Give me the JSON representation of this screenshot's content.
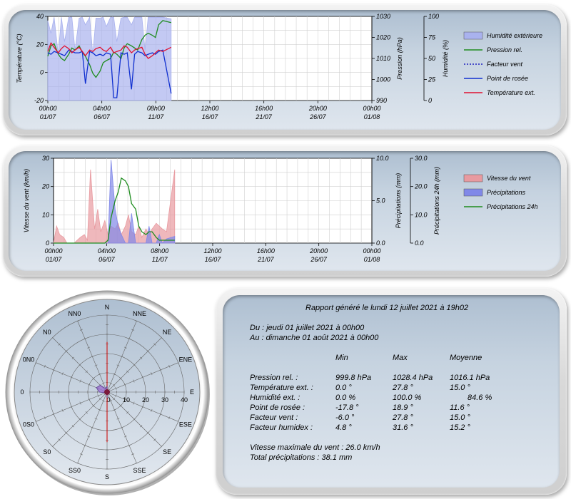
{
  "chart_data": [
    {
      "type": "line",
      "x_ticks": [
        [
          "00h00",
          "01/07"
        ],
        [
          "04h00",
          "06/07"
        ],
        [
          "08h00",
          "11/07"
        ],
        [
          "12h00",
          "16/07"
        ],
        [
          "16h00",
          "21/07"
        ],
        [
          "20h00",
          "26/07"
        ],
        [
          "00h00",
          "01/08"
        ]
      ],
      "y_left": {
        "label": "Température (°C)",
        "range": [
          -20,
          40
        ],
        "ticks": [
          "40",
          "20",
          "0",
          "-20"
        ]
      },
      "y_mid": {
        "label": "Pression (hPa)",
        "range": [
          990,
          1030
        ],
        "ticks": [
          "1030",
          "1020",
          "1010",
          "1000",
          "990"
        ]
      },
      "y_right": {
        "label": "Humidité (%)",
        "range": [
          0,
          100
        ],
        "ticks": [
          "100",
          "75",
          "50",
          "25",
          "0"
        ]
      },
      "legend": [
        {
          "name": "Humidité extérieure",
          "color": "#a9b2ee",
          "kind": "area"
        },
        {
          "name": "Pression rel.",
          "color": "#1e8c1e",
          "kind": "line"
        },
        {
          "name": "Facteur vent",
          "color": "#2020c0",
          "kind": "dotted"
        },
        {
          "name": "Point de rosée",
          "color": "#1030d0",
          "kind": "line"
        },
        {
          "name": "Température ext.",
          "color": "#e01030",
          "kind": "line"
        }
      ],
      "x_days": [
        1.0,
        1.3,
        1.6,
        2.0,
        2.3,
        2.6,
        3.0,
        3.3,
        3.6,
        4.0,
        4.3,
        4.6,
        5.0,
        5.3,
        5.6,
        6.0,
        6.3,
        6.6,
        7.0,
        7.3,
        7.6,
        8.0,
        8.3,
        8.6,
        9.0,
        9.3,
        9.6,
        10.0,
        10.3,
        10.6,
        11.0,
        11.3,
        11.6,
        12.0,
        12.8
      ],
      "series": [
        {
          "name": "Humidité extérieure",
          "axis": "right",
          "values": [
            95,
            80,
            99,
            55,
            99,
            70,
            99,
            99,
            60,
            98,
            99,
            90,
            99,
            55,
            98,
            98,
            99,
            88,
            99,
            99,
            70,
            98,
            99,
            99,
            90,
            99,
            99,
            99,
            60,
            99,
            99,
            99,
            99,
            99,
            97
          ]
        },
        {
          "name": "Pression rel.",
          "axis": "mid",
          "values": [
            1011,
            1016,
            1017,
            1012,
            1010,
            1009,
            1012,
            1015,
            1014,
            1016,
            1013,
            1011,
            1007,
            1003,
            1001,
            1004,
            1008,
            1009,
            1010,
            1013,
            1012,
            1010,
            1015,
            1017,
            1016,
            1015,
            1014,
            1019,
            1021,
            1022,
            1021,
            1020,
            1026,
            1028,
            1027
          ]
        },
        {
          "name": "Point de rosée",
          "axis": "left",
          "values": [
            14,
            13,
            15,
            14,
            13,
            12,
            16,
            15,
            14,
            14,
            15,
            -8,
            15,
            14,
            12,
            13,
            12,
            14,
            13,
            -18,
            -18,
            14,
            13,
            14,
            -12,
            13,
            15,
            14,
            12,
            13,
            14,
            13,
            15,
            16,
            -15
          ]
        },
        {
          "name": "Température ext.",
          "axis": "left",
          "values": [
            15,
            21,
            18,
            14,
            17,
            19,
            17,
            14,
            16,
            18,
            15,
            12,
            16,
            15,
            17,
            18,
            16,
            15,
            18,
            14,
            15,
            16,
            19,
            18,
            14,
            16,
            17,
            18,
            13,
            10,
            12,
            14,
            16,
            15,
            18
          ]
        }
      ]
    },
    {
      "type": "area",
      "x_ticks": [
        [
          "00h00",
          "01/07"
        ],
        [
          "04h00",
          "06/07"
        ],
        [
          "08h00",
          "11/07"
        ],
        [
          "12h00",
          "16/07"
        ],
        [
          "16h00",
          "21/07"
        ],
        [
          "20h00",
          "26/07"
        ],
        [
          "00h00",
          "01/08"
        ]
      ],
      "y_left": {
        "label": "Vitesse du vent (km/h)",
        "range": [
          0,
          30
        ],
        "ticks": [
          "30",
          "20",
          "10",
          "0"
        ]
      },
      "y_mid": {
        "label": "Précipitations (mm)",
        "range": [
          0,
          10
        ],
        "ticks": [
          "10.0",
          "5.0",
          "0.0"
        ]
      },
      "y_right": {
        "label": "Précipitations 24h (mm)",
        "range": [
          0,
          30
        ],
        "ticks": [
          "30.0",
          "20.0",
          "10.0",
          "0.0"
        ]
      },
      "legend": [
        {
          "name": "Vitesse du vent",
          "color": "#e89aa0",
          "kind": "area"
        },
        {
          "name": "Précipitations",
          "color": "#8088e8",
          "kind": "area"
        },
        {
          "name": "Précipitations 24h",
          "color": "#1e8c1e",
          "kind": "line"
        }
      ],
      "x_days": [
        1.0,
        1.3,
        1.6,
        2.0,
        2.3,
        2.6,
        3.0,
        3.3,
        3.6,
        4.0,
        4.3,
        4.6,
        5.0,
        5.3,
        5.6,
        6.0,
        6.3,
        6.6,
        7.0,
        7.3,
        7.6,
        8.0,
        8.3,
        8.6,
        9.0,
        9.3,
        9.6,
        10.0,
        10.3,
        10.6,
        11.0,
        11.3,
        11.6,
        12.0,
        12.8
      ],
      "series": [
        {
          "name": "Vitesse du vent",
          "axis": "left",
          "values": [
            0,
            6,
            3,
            2,
            0,
            0,
            0,
            1,
            2,
            3,
            1,
            26,
            5,
            12,
            4,
            8,
            3,
            6,
            5,
            7,
            3,
            6,
            10,
            4,
            3,
            6,
            2,
            5,
            3,
            5,
            7,
            6,
            5,
            4,
            26
          ]
        },
        {
          "name": "Précipitations",
          "axis": "mid",
          "values": [
            0,
            0,
            0,
            0,
            0,
            0,
            0,
            0,
            0,
            0,
            0,
            0,
            0,
            0,
            0,
            0,
            0,
            9.8,
            4.0,
            2.0,
            1.0,
            0,
            0,
            3.5,
            0,
            0,
            0,
            0,
            2.0,
            0,
            0,
            1.0,
            0,
            0.5,
            0.8
          ]
        },
        {
          "name": "Précipitations 24h",
          "axis": "right",
          "values": [
            0,
            0,
            0,
            0,
            0,
            0,
            0,
            0,
            0,
            0,
            0,
            0,
            0,
            0,
            0,
            0,
            1,
            9,
            15,
            18,
            23,
            22,
            20,
            14,
            12,
            6,
            4,
            3,
            4,
            4,
            2,
            1,
            1,
            1,
            1
          ]
        }
      ]
    },
    {
      "type": "polar",
      "directions": [
        "N",
        "NNE",
        "NE",
        "ENE",
        "E",
        "ESE",
        "SE",
        "SSE",
        "S",
        "SS0",
        "S0",
        "0S0",
        "0",
        "0N0",
        "N0",
        "NN0"
      ],
      "rings": [
        "0",
        "10",
        "20",
        "30",
        "40"
      ],
      "max": 40,
      "values": [
        3,
        0,
        0,
        0,
        0,
        0,
        0,
        0,
        3,
        0,
        0,
        1,
        4,
        6,
        5,
        2
      ],
      "fill": "#9a6fd0"
    }
  ],
  "report": {
    "title": "Rapport généré le lundi 12 juillet 2021 à 19h02",
    "from": "Du : jeudi 01 juillet 2021 à 00h00",
    "to": "Au : dimanche 01 août 2021 à 00h00",
    "headers": [
      "Min",
      "Max",
      "Moyenne"
    ],
    "rows": [
      {
        "label": "Pression rel. :",
        "min": "999.8 hPa",
        "max": "1028.4 hPa",
        "avg": "1016.1 hPa"
      },
      {
        "label": "Température ext. :",
        "min": "0.0 °",
        "max": "27.8 °",
        "avg": "15.0 °"
      },
      {
        "label": "Humidité ext. :",
        "min": "0.0 %",
        "max": "100.0 %",
        "avg": "84.6 %"
      },
      {
        "label": "Point de rosée :",
        "min": "-17.8 °",
        "max": "18.9 °",
        "avg": "11.6 °"
      },
      {
        "label": "Facteur vent :",
        "min": "-6.0 °",
        "max": "27.8 °",
        "avg": "15.0 °"
      },
      {
        "label": "Facteur humidex :",
        "min": "4.8 °",
        "max": "31.6 °",
        "avg": "15.2 °"
      }
    ],
    "max_wind": "Vitesse maximale du vent : 26.0 km/h",
    "total_precip": "Total précipitations : 38.1 mm"
  }
}
